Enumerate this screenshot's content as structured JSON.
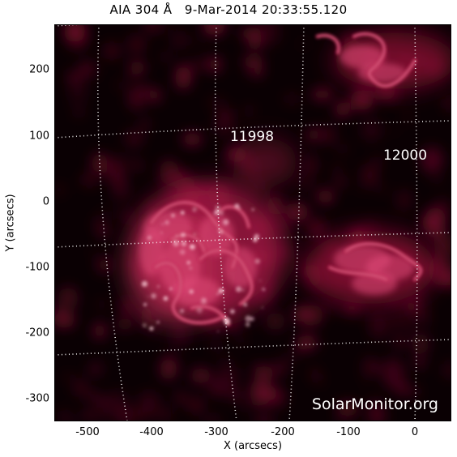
{
  "title": "AIA 304 Å   9-Mar-2014 20:33:55.120",
  "axes": {
    "xlabel": "X (arcsecs)",
    "ylabel": "Y (arcsecs)",
    "x_ticks": [
      "-500",
      "-400",
      "-300",
      "-200",
      "-100",
      "0"
    ],
    "y_ticks": [
      "200",
      "100",
      "0",
      "-100",
      "-200",
      "-300"
    ]
  },
  "active_regions": [
    {
      "number": "11998"
    },
    {
      "number": "12000"
    }
  ],
  "watermark": "SolarMonitor.org",
  "colors": {
    "background": "#0a0003",
    "emission_mid": "#c0184a",
    "emission_bright": "#ffd2dc",
    "grid": "#ffffff"
  }
}
